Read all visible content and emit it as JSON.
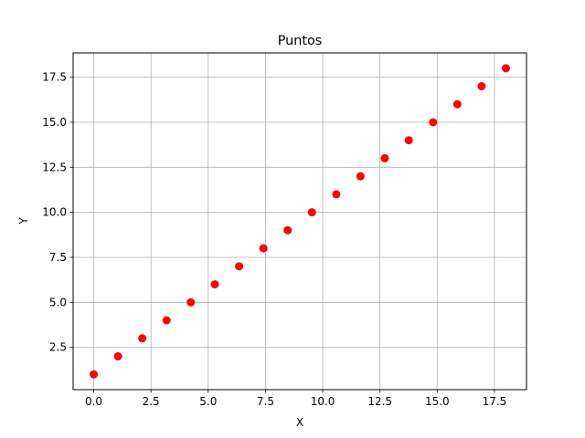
{
  "chart_data": {
    "type": "scatter",
    "title": "Puntos",
    "xlabel": "X",
    "ylabel": "Y",
    "xlim": [
      -0.9,
      18.9
    ],
    "ylim": [
      0.15,
      18.85
    ],
    "x_ticks": [
      0.0,
      2.5,
      5.0,
      7.5,
      10.0,
      12.5,
      15.0,
      17.5
    ],
    "x_tick_labels": [
      "0.0",
      "2.5",
      "5.0",
      "7.5",
      "10.0",
      "12.5",
      "15.0",
      "17.5"
    ],
    "y_ticks": [
      2.5,
      5.0,
      7.5,
      10.0,
      12.5,
      15.0,
      17.5
    ],
    "y_tick_labels": [
      "2.5",
      "5.0",
      "7.5",
      "10.0",
      "12.5",
      "15.0",
      "17.5"
    ],
    "grid": true,
    "marker_color": "#ff0000",
    "series": [
      {
        "x": [
          0.0,
          1.06,
          2.12,
          3.18,
          4.24,
          5.29,
          6.35,
          7.41,
          8.47,
          9.53,
          10.59,
          11.65,
          12.71,
          13.76,
          14.82,
          15.88,
          16.94,
          18.0
        ],
        "y": [
          1,
          2,
          3,
          4,
          5,
          6,
          7,
          8,
          9,
          10,
          11,
          12,
          13,
          14,
          15,
          16,
          17,
          18
        ]
      }
    ]
  }
}
